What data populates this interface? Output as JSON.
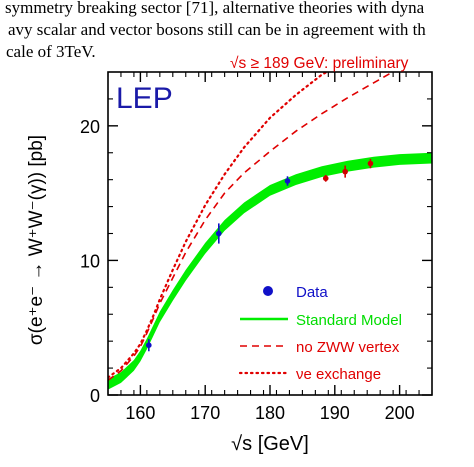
{
  "page_text": {
    "line1": "symmetry breaking sector [71], alternative theories with dyna",
    "line2": "avy scalar and vector bosons still can be in agreement with th",
    "line3": "cale of 3TeV."
  },
  "chart_data": {
    "type": "line",
    "label": "LEP",
    "annotation": "√s ≥ 189 GeV: preliminary",
    "xlabel": "√s   [GeV]",
    "ylabel": "σ(e⁺e⁻ → W⁺W⁻(γ))   [pb]",
    "xlim": [
      155,
      205
    ],
    "ylim": [
      0,
      24
    ],
    "x_ticks": [
      160,
      170,
      180,
      190,
      200
    ],
    "y_ticks": [
      0,
      10,
      20
    ],
    "legend_position": "bottom-right",
    "legend": {
      "data": "Data",
      "standard_model": "Standard Model",
      "no_zww": "no ZWW vertex",
      "nu_exchange": "νe exchange"
    },
    "colors": {
      "label": "#1a1aa8",
      "annotation": "#e00000",
      "data": "#1010c8",
      "preliminary_data": "#d00000",
      "standard_model": "#00ee00",
      "no_zww": "#e00000",
      "nu_exchange": "#e00000"
    },
    "series": [
      {
        "name": "Standard Model",
        "style": "band",
        "x": [
          155,
          157,
          159,
          160,
          161,
          162,
          163,
          165,
          167,
          170,
          173,
          176,
          180,
          184,
          188,
          192,
          196,
          200,
          205
        ],
        "y": [
          0.8,
          1.3,
          2.2,
          2.9,
          3.8,
          4.8,
          5.8,
          7.4,
          8.9,
          10.9,
          12.6,
          13.9,
          15.2,
          16.0,
          16.6,
          17.0,
          17.3,
          17.5,
          17.6
        ],
        "band_halfwidth": 0.4
      },
      {
        "name": "no ZWW vertex",
        "style": "dashed",
        "x": [
          155,
          157,
          159,
          160,
          161,
          162,
          163,
          165,
          167,
          170,
          173,
          176,
          180,
          184,
          188,
          192,
          196,
          200,
          203
        ],
        "y": [
          1.1,
          1.8,
          2.9,
          3.6,
          4.6,
          5.7,
          6.8,
          8.7,
          10.6,
          13.0,
          15.0,
          16.5,
          18.1,
          19.6,
          20.9,
          22.1,
          23.2,
          24.3,
          25.0
        ]
      },
      {
        "name": "νe exchange",
        "style": "dotted",
        "x": [
          155,
          157,
          159,
          160,
          161,
          162,
          163,
          165,
          167,
          170,
          173,
          176,
          180,
          184,
          188,
          191,
          193
        ],
        "y": [
          1.3,
          2.0,
          3.1,
          3.8,
          4.8,
          5.9,
          7.1,
          9.3,
          11.4,
          14.1,
          16.4,
          18.4,
          20.6,
          22.3,
          23.8,
          24.6,
          25.0
        ]
      }
    ],
    "data_points": [
      {
        "x": 161.3,
        "y": 3.7,
        "err": 0.45,
        "preliminary": false
      },
      {
        "x": 172.1,
        "y": 12.0,
        "err": 0.75,
        "preliminary": false
      },
      {
        "x": 182.7,
        "y": 15.9,
        "err": 0.35,
        "preliminary": false
      },
      {
        "x": 188.6,
        "y": 16.1,
        "err": 0.25,
        "preliminary": true
      },
      {
        "x": 191.6,
        "y": 16.6,
        "err": 0.45,
        "preliminary": true
      },
      {
        "x": 195.5,
        "y": 17.2,
        "err": 0.35,
        "preliminary": true
      }
    ]
  }
}
